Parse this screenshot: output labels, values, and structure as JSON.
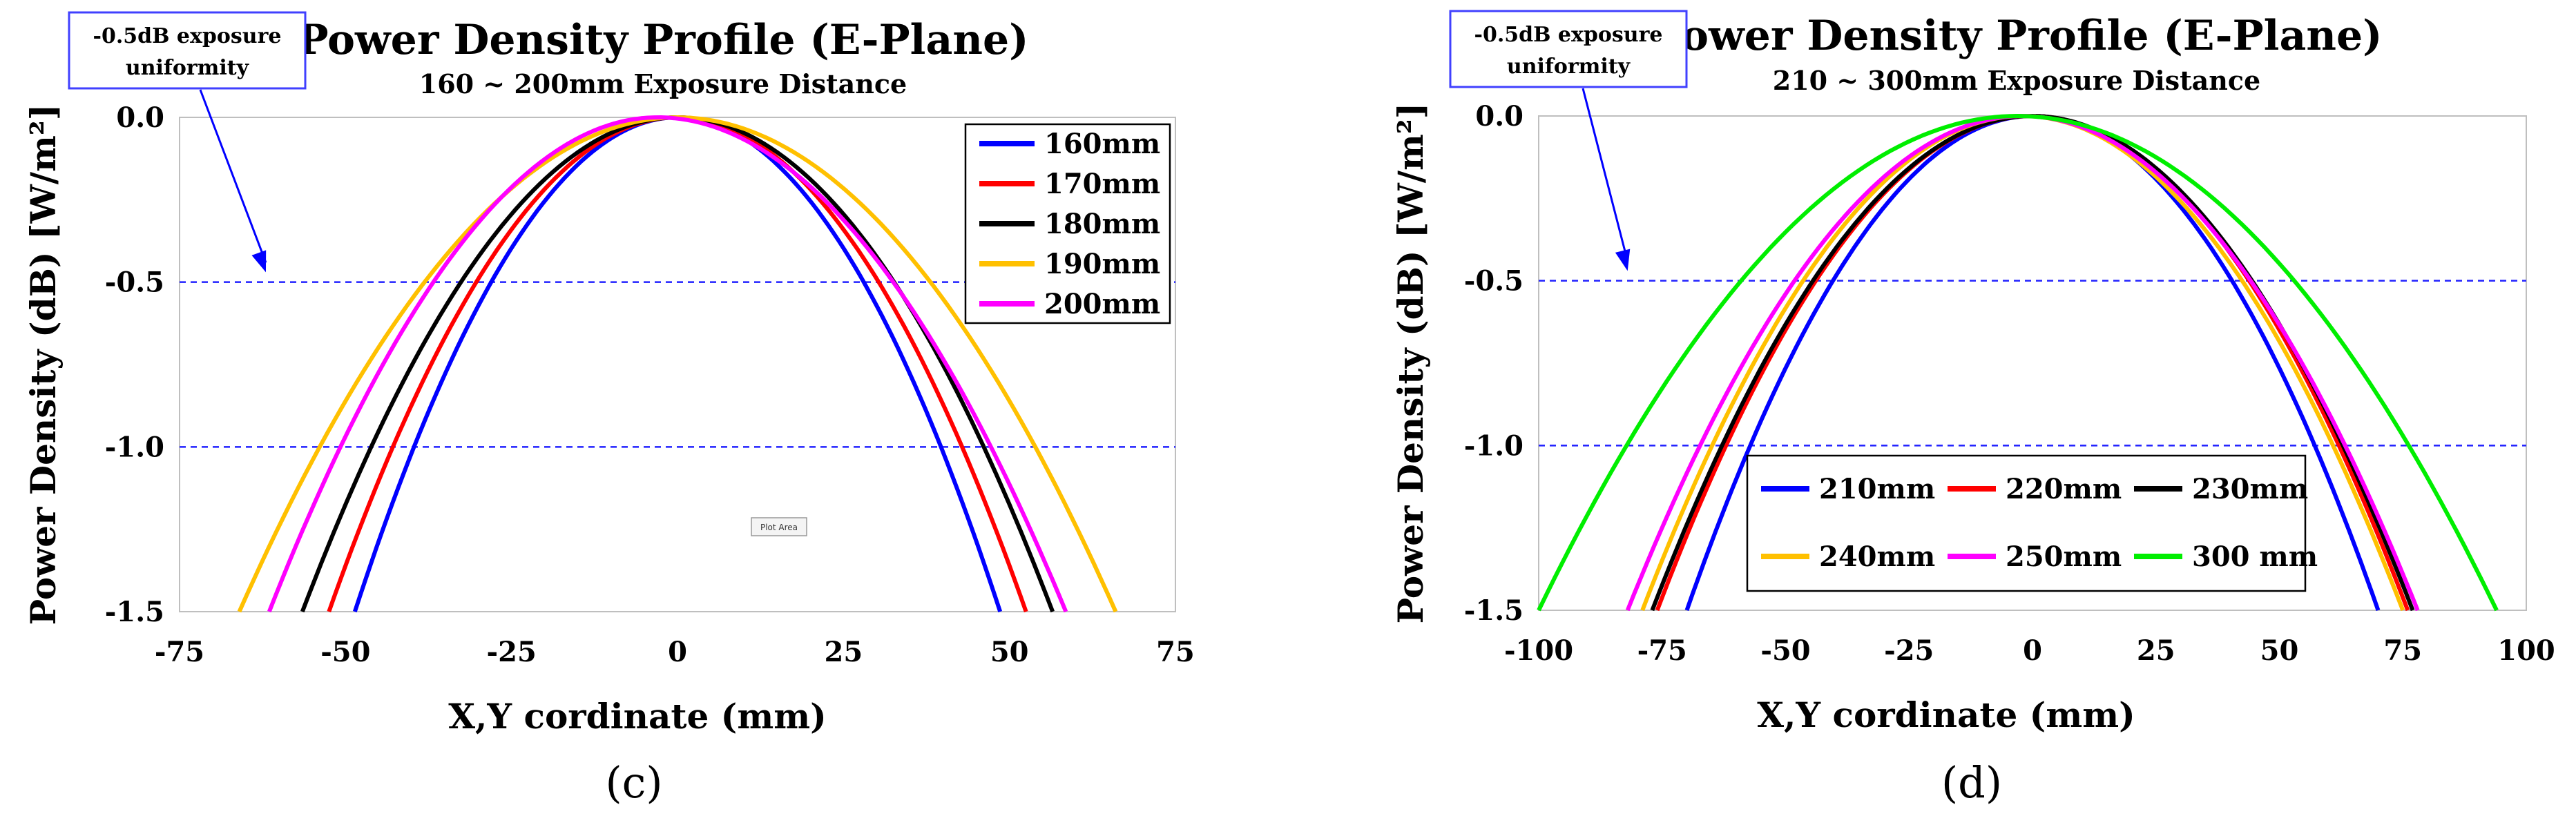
{
  "chart_data": [
    {
      "type": "line",
      "panel_label": "(c)",
      "title": "Power Density Profile (E-Plane)",
      "subtitle": "160 ~ 200mm Exposure Distance",
      "xlabel": "X,Y cordinate (mm)",
      "ylabel": "Power Density (dB) [W/m²]",
      "xlim": [
        -75,
        75
      ],
      "ylim": [
        -1.5,
        0.0
      ],
      "xticks": [
        -75,
        -50,
        -25,
        0,
        25,
        50,
        75
      ],
      "xtick_labels": [
        "-75",
        "-50",
        "-25",
        "0",
        "25",
        "50",
        "75"
      ],
      "yticks": [
        0.0,
        -0.5,
        -1.0,
        -1.5
      ],
      "ytick_labels": [
        "0.0",
        "-0.5",
        "-1.0",
        "-1.5"
      ],
      "reference_lines": [
        -0.5,
        -1.0
      ],
      "annotation": {
        "text": [
          "-0.5dB exposure",
          "uniformity"
        ],
        "points_to": [
          -62,
          -0.47
        ]
      },
      "plot_area_tag": "Plot Area",
      "legend": {
        "placement": "top-right",
        "columns": 1
      },
      "series": [
        {
          "name": "160mm",
          "color": "#0000ff",
          "left_x": -48.6,
          "right_x": 48.6,
          "peak": 0,
          "xmin": -48.6,
          "xmax": 48.6
        },
        {
          "name": "170mm",
          "color": "#ff0000",
          "left_x": -52.5,
          "right_x": 52.5,
          "peak": 0,
          "xmin": -52.5,
          "xmax": 52.5
        },
        {
          "name": "180mm",
          "color": "#000000",
          "left_x": -56.5,
          "right_x": 56.5,
          "peak": 0,
          "xmin": -56.5,
          "xmax": 56.5
        },
        {
          "name": "190mm",
          "color": "#ffc000",
          "left_x": -66,
          "right_x": 66,
          "peak": 0,
          "xmin": -66,
          "xmax": 66
        },
        {
          "name": "200mm",
          "color": "#ff00ff",
          "left_x": -61.5,
          "right_x": 58.5,
          "peak": -3,
          "xmin": -61.5,
          "xmax": 58.5
        }
      ]
    },
    {
      "type": "line",
      "panel_label": "(d)",
      "title": "Power Density Profile (E-Plane)",
      "subtitle": "210 ~ 300mm Exposure Distance",
      "xlabel": "X,Y cordinate (mm)",
      "ylabel": "Power Density (dB) [W/m²]",
      "xlim": [
        -100,
        100
      ],
      "ylim": [
        -1.5,
        0.0
      ],
      "xticks": [
        -100,
        -75,
        -50,
        -25,
        0,
        25,
        50,
        75,
        100
      ],
      "xtick_labels": [
        "-100",
        "-75",
        "-50",
        "-25",
        "0",
        "25",
        "50",
        "75",
        "100"
      ],
      "yticks": [
        0.0,
        -0.5,
        -1.0,
        -1.5
      ],
      "ytick_labels": [
        "0.0",
        "-0.5",
        "-1.0",
        "-1.5"
      ],
      "reference_lines": [
        -0.5,
        -1.0
      ],
      "annotation": {
        "text": [
          "-0.5dB exposure",
          "uniformity"
        ],
        "points_to": [
          -82,
          -0.47
        ]
      },
      "legend": {
        "placement": "bottom-center",
        "columns": 3
      },
      "series": [
        {
          "name": "210mm",
          "color": "#0000ff",
          "left_x": -70,
          "right_x": 70,
          "peak": 0,
          "xmin": -70,
          "xmax": 70
        },
        {
          "name": "220mm",
          "color": "#ff0000",
          "left_x": -76,
          "right_x": 76,
          "peak": 0,
          "xmin": -76,
          "xmax": 76
        },
        {
          "name": "230mm",
          "color": "#000000",
          "left_x": -77,
          "right_x": 77,
          "peak": 0,
          "xmin": -77,
          "xmax": 77
        },
        {
          "name": "240mm",
          "color": "#ffc000",
          "left_x": -79,
          "right_x": 75,
          "peak": -2,
          "xmin": -79,
          "xmax": 75
        },
        {
          "name": "250mm",
          "color": "#ff00ff",
          "left_x": -82,
          "right_x": 78,
          "peak": -2,
          "xmin": -82,
          "xmax": 78
        },
        {
          "name": "300 mm",
          "color": "#00ee00",
          "left_x": -100,
          "right_x": 94,
          "peak": -3,
          "xmin": -100,
          "xmax": 94
        }
      ]
    }
  ]
}
